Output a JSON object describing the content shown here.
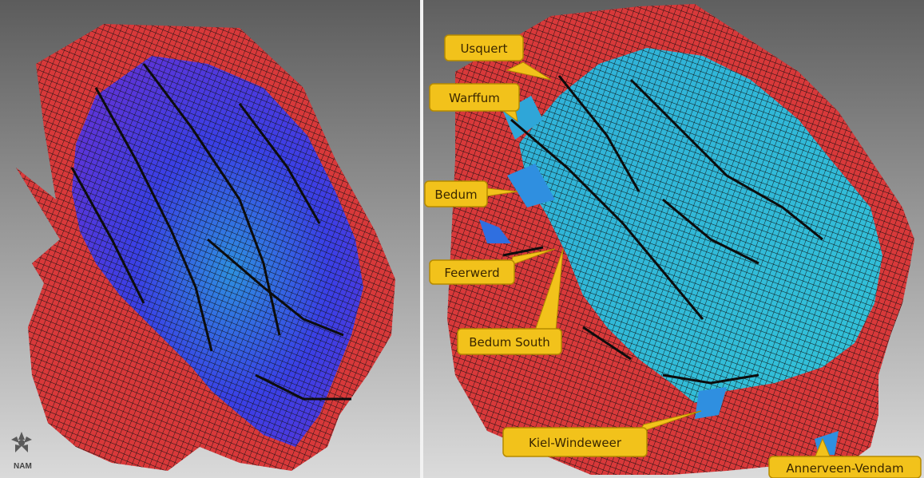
{
  "logo": {
    "label": "NAM",
    "icon": "nam-logo-icon"
  },
  "callouts": [
    {
      "key": "usquert",
      "label": "Usquert"
    },
    {
      "key": "warffum",
      "label": "Warffum"
    },
    {
      "key": "bedum",
      "label": "Bedum"
    },
    {
      "key": "feerwerd",
      "label": "Feerwerd"
    },
    {
      "key": "bedum-south",
      "label": "Bedum South"
    },
    {
      "key": "kiel-windeweer",
      "label": "Kiel-Windeweer"
    },
    {
      "key": "annerveen-vendam",
      "label": "Annerveen-Vendam"
    }
  ],
  "colors": {
    "background_top": "#5f5f5f",
    "background_bottom": "#d9d9d9",
    "reservoir_red": "#d8393a",
    "gas_blue": "#3b3fe0",
    "gas_cyan": "#2fb6d6",
    "gas_violet": "#8a3bd8",
    "callout_fill": "#f2c21b",
    "callout_stroke": "#b58a00"
  }
}
